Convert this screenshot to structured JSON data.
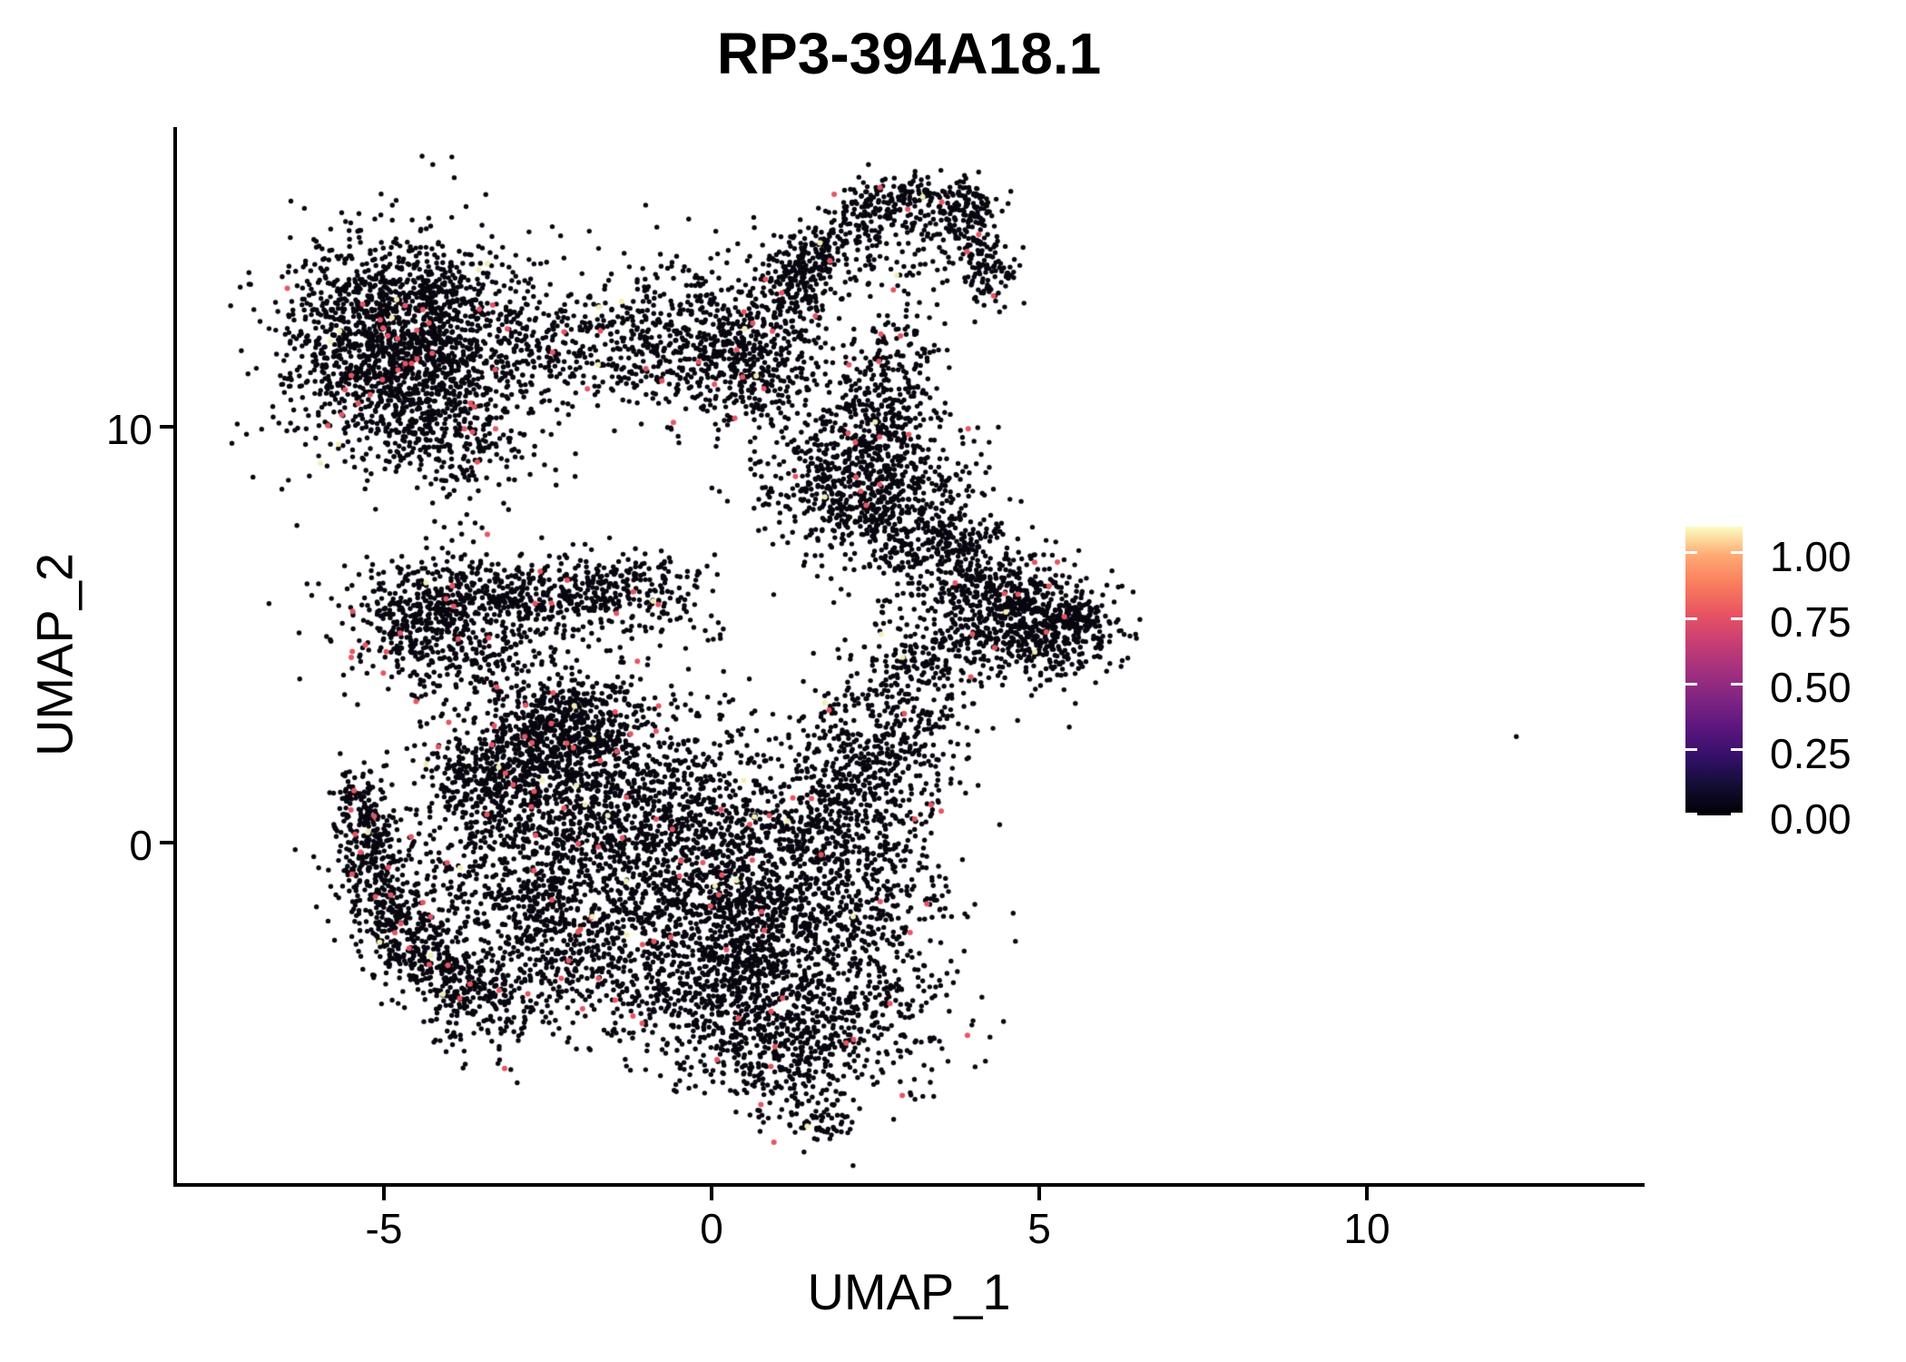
{
  "title": "RP3-394A18.1",
  "chart_data": {
    "type": "scatter",
    "subtype": "umap-feature-plot",
    "title": "RP3-394A18.1",
    "xlabel": "UMAP_1",
    "ylabel": "UMAP_2",
    "x_ticks": [
      -5,
      0,
      5,
      10
    ],
    "y_ticks": [
      10,
      0
    ],
    "x_tick_labels": [
      "-5",
      "0",
      "5",
      "10"
    ],
    "y_tick_labels": [
      "10",
      "0"
    ],
    "x_range": [
      -8.19,
      14.21
    ],
    "y_range": [
      -8.19,
      17.21
    ],
    "grid": false,
    "legend_position": "right",
    "colorbar": {
      "tick_labels": [
        "1.00",
        "0.75",
        "0.50",
        "0.25",
        "0.00"
      ],
      "tick_values": [
        1.0,
        0.75,
        0.5,
        0.25,
        0.0
      ],
      "scale_max": 1.1,
      "palette_name": "magma",
      "palette_stops_bottom_to_top": [
        "#000004",
        "#120d31",
        "#331068",
        "#5a167e",
        "#7e2482",
        "#a3307e",
        "#c83e73",
        "#e95462",
        "#f97c5d",
        "#fea973",
        "#fcfdbf"
      ]
    },
    "point_style": {
      "radius_px": 2.7,
      "accent_radius_px": 3.0,
      "base_color": "#08060f",
      "mid_expression_color": "#E95462",
      "high_expression_color": "#F3EFB2",
      "mid_fraction": 0.016,
      "high_fraction": 0.003
    },
    "seed": 7,
    "clusters": [
      {
        "id": "topleft-core1",
        "type": "blob",
        "cx": -4.9,
        "cy": 13.06,
        "sx": 0.66,
        "sy": 0.79,
        "n": 430
      },
      {
        "id": "topleft-core2",
        "type": "blob",
        "cx": -4.04,
        "cy": 12.36,
        "sx": 0.64,
        "sy": 0.87,
        "n": 430
      },
      {
        "id": "topleft-core3",
        "type": "blob",
        "cx": -5.29,
        "cy": 11.48,
        "sx": 0.64,
        "sy": 0.87,
        "n": 390
      },
      {
        "id": "topleft-core4",
        "type": "blob",
        "cx": -4.38,
        "cy": 10.83,
        "sx": 0.69,
        "sy": 0.79,
        "n": 330
      },
      {
        "id": "topleft-halo",
        "type": "blob",
        "cx": -4.6,
        "cy": 11.86,
        "sx": 1.22,
        "sy": 1.66,
        "n": 480
      },
      {
        "id": "topleft-tail",
        "type": "blob",
        "cx": -3.86,
        "cy": 9.52,
        "sx": 0.53,
        "sy": 0.61,
        "n": 140
      },
      {
        "id": "bridge-1",
        "type": "blob",
        "cx": -2.69,
        "cy": 12.07,
        "sx": 0.44,
        "sy": 0.61,
        "n": 90
      },
      {
        "id": "bridge-2",
        "type": "blob",
        "cx": -1.83,
        "cy": 11.92,
        "sx": 0.62,
        "sy": 0.72,
        "n": 130
      },
      {
        "id": "midchain-core",
        "type": "blob",
        "cx": -0.12,
        "cy": 12.14,
        "sx": 0.78,
        "sy": 0.92,
        "n": 580
      },
      {
        "id": "midchain-ext",
        "type": "blob",
        "cx": 0.68,
        "cy": 11.27,
        "sx": 0.5,
        "sy": 0.66,
        "n": 200
      },
      {
        "id": "midchain-up",
        "type": "blob",
        "cx": 1.22,
        "cy": 12.4,
        "sx": 0.35,
        "sy": 0.66,
        "n": 70
      },
      {
        "id": "hat-left-lobe",
        "type": "blob",
        "cx": 1.36,
        "cy": 13.71,
        "sx": 0.36,
        "sy": 0.48,
        "n": 110
      },
      {
        "id": "hat-inner",
        "type": "blob",
        "cx": 2.78,
        "cy": 14.32,
        "sx": 0.76,
        "sy": 0.72,
        "n": 130
      },
      {
        "id": "hat-rise",
        "type": "line",
        "x1": 1.19,
        "y1": 13.54,
        "x2": 2.41,
        "y2": 15.41,
        "sx": 0.24,
        "sy": 0.37,
        "n": 210
      },
      {
        "id": "hat-top",
        "type": "line",
        "x1": 2.41,
        "y1": 15.46,
        "x2": 4.13,
        "y2": 15.33,
        "sx": 0.21,
        "sy": 0.33,
        "n": 240
      },
      {
        "id": "hat-hook",
        "type": "line",
        "x1": 3.91,
        "y1": 15.07,
        "x2": 4.32,
        "y2": 13.17,
        "sx": 0.21,
        "sy": 0.33,
        "n": 150
      },
      {
        "id": "hat-stream",
        "type": "line",
        "x1": 3.02,
        "y1": 12.58,
        "x2": 2.6,
        "y2": 9.83,
        "sx": 0.33,
        "sy": 0.52,
        "n": 150
      },
      {
        "id": "midblob-core",
        "type": "blob",
        "cx": 2.16,
        "cy": 8.8,
        "sx": 0.76,
        "sy": 0.92,
        "n": 520
      },
      {
        "id": "midblob-se",
        "type": "blob",
        "cx": 2.78,
        "cy": 8.03,
        "sx": 0.62,
        "sy": 0.87,
        "n": 300
      },
      {
        "id": "midblob-upper",
        "type": "blob",
        "cx": 2.51,
        "cy": 10.33,
        "sx": 0.48,
        "sy": 0.87,
        "n": 160
      },
      {
        "id": "midblob-drip",
        "type": "line",
        "x1": 2.55,
        "y1": 7.82,
        "x2": 2.92,
        "y2": 6.62,
        "sx": 0.17,
        "sy": 0.26,
        "n": 60
      },
      {
        "id": "midblob-streak",
        "type": "line",
        "x1": 3.16,
        "y1": 7.49,
        "x2": 4.17,
        "y2": 6.94,
        "sx": 0.14,
        "sy": 0.22,
        "n": 70
      },
      {
        "id": "east-lobe",
        "type": "blob",
        "cx": 4.52,
        "cy": 5.41,
        "sx": 0.66,
        "sy": 0.7,
        "n": 420
      },
      {
        "id": "east-lobe2",
        "type": "blob",
        "cx": 5.21,
        "cy": 5.09,
        "sx": 0.48,
        "sy": 0.57,
        "n": 260
      },
      {
        "id": "east-tip",
        "type": "blob",
        "cx": 5.62,
        "cy": 5.31,
        "sx": 0.19,
        "sy": 0.26,
        "n": 70
      },
      {
        "id": "east-north",
        "type": "blob",
        "cx": 4.24,
        "cy": 6.18,
        "sx": 0.55,
        "sy": 0.39,
        "n": 160
      },
      {
        "id": "east-above",
        "type": "blob",
        "cx": 4.03,
        "cy": 7.16,
        "sx": 0.42,
        "sy": 0.44,
        "n": 60
      },
      {
        "id": "band-ridge",
        "type": "line",
        "x1": -5.04,
        "y1": 5.7,
        "x2": -0.58,
        "y2": 6.11,
        "sx": 0.28,
        "sy": 0.44,
        "n": 650
      },
      {
        "id": "band-lump",
        "type": "blob",
        "cx": -4.38,
        "cy": 4.98,
        "sx": 0.58,
        "sy": 0.57,
        "n": 200
      },
      {
        "id": "band-spread",
        "type": "blob",
        "cx": -2.76,
        "cy": 5.59,
        "sx": 1.59,
        "sy": 0.92,
        "n": 240
      },
      {
        "id": "band-below",
        "type": "blob",
        "cx": -3.66,
        "cy": 4.21,
        "sx": 0.83,
        "sy": 0.55,
        "n": 120
      },
      {
        "id": "diag-streak1",
        "type": "line",
        "x1": -4.24,
        "y1": 1.44,
        "x2": -1.83,
        "y2": 3.49,
        "sx": 0.22,
        "sy": 0.35,
        "n": 280
      },
      {
        "id": "diag-streak2",
        "type": "line",
        "x1": -3.82,
        "y1": 0.87,
        "x2": -1.61,
        "y2": 2.79,
        "sx": 0.19,
        "sy": 0.31,
        "n": 220
      },
      {
        "id": "crescent-1",
        "type": "line",
        "x1": -5.43,
        "y1": 1.44,
        "x2": -5.29,
        "y2": -0.52,
        "sx": 0.22,
        "sy": 0.35,
        "n": 180
      },
      {
        "id": "crescent-2",
        "type": "line",
        "x1": -5.29,
        "y1": -0.52,
        "x2": -4.6,
        "y2": -2.62,
        "sx": 0.24,
        "sy": 0.37,
        "n": 200
      },
      {
        "id": "crescent-3",
        "type": "line",
        "x1": -4.6,
        "y1": -2.62,
        "x2": -3.35,
        "y2": -3.93,
        "sx": 0.25,
        "sy": 0.39,
        "n": 200
      },
      {
        "id": "crescent-halo",
        "type": "blob",
        "cx": -5.04,
        "cy": -0.7,
        "sx": 0.42,
        "sy": 1.31,
        "n": 140
      },
      {
        "id": "mass-1",
        "type": "blob",
        "cx": -1.79,
        "cy": 1.05,
        "sx": 1.04,
        "sy": 1.2,
        "n": 800
      },
      {
        "id": "mass-2",
        "type": "blob",
        "cx": -0.06,
        "cy": 0.07,
        "sx": 1.04,
        "sy": 1.31,
        "n": 800
      },
      {
        "id": "mass-3",
        "type": "blob",
        "cx": -1.16,
        "cy": -2.01,
        "sx": 1.18,
        "sy": 1.2,
        "n": 700
      },
      {
        "id": "mass-4",
        "type": "blob",
        "cx": 0.91,
        "cy": -2.45,
        "sx": 0.76,
        "sy": 1.05,
        "n": 450
      },
      {
        "id": "mass-5",
        "type": "blob",
        "cx": 1.68,
        "cy": -0.48,
        "sx": 0.76,
        "sy": 1.2,
        "n": 400
      },
      {
        "id": "mass-6",
        "type": "blob",
        "cx": 2.16,
        "cy": 1.48,
        "sx": 0.62,
        "sy": 0.98,
        "n": 300
      },
      {
        "id": "mass-topedge",
        "type": "blob",
        "cx": -2.27,
        "cy": 3.01,
        "sx": 0.76,
        "sy": 0.66,
        "n": 250
      },
      {
        "id": "mass-left",
        "type": "blob",
        "cx": -2.89,
        "cy": -0.26,
        "sx": 0.76,
        "sy": 1.31,
        "n": 400
      },
      {
        "id": "mass-leftlow",
        "type": "blob",
        "cx": -2.55,
        "cy": -2.88,
        "sx": 0.69,
        "sy": 0.98,
        "n": 200
      },
      {
        "id": "mass-wedge",
        "type": "blob",
        "cx": -0.06,
        "cy": -3.76,
        "sx": 0.9,
        "sy": 0.92,
        "n": 450
      },
      {
        "id": "mass-wedge2",
        "type": "blob",
        "cx": 1.05,
        "cy": -5.28,
        "sx": 0.58,
        "sy": 0.7,
        "n": 260
      },
      {
        "id": "mass-tip",
        "type": "blob",
        "cx": 1.68,
        "cy": -6.7,
        "sx": 0.25,
        "sy": 0.24,
        "n": 50
      },
      {
        "id": "mass-ne",
        "type": "blob",
        "cx": 2.85,
        "cy": 2.79,
        "sx": 0.62,
        "sy": 0.98,
        "n": 260
      },
      {
        "id": "mass-neck",
        "type": "blob",
        "cx": 3.27,
        "cy": 4.32,
        "sx": 0.48,
        "sy": 0.76,
        "n": 160
      },
      {
        "id": "mass-right",
        "type": "blob",
        "cx": 2.65,
        "cy": -1.57,
        "sx": 0.62,
        "sy": 0.98,
        "n": 160
      },
      {
        "id": "mass-se",
        "type": "blob",
        "cx": 2.3,
        "cy": -4.19,
        "sx": 0.7,
        "sy": 0.9,
        "n": 300
      },
      {
        "id": "mass-swtail",
        "type": "blob",
        "cx": -3.66,
        "cy": -3.76,
        "sx": 0.55,
        "sy": 0.76,
        "n": 120
      },
      {
        "id": "mass-wfill",
        "type": "blob",
        "cx": -4.35,
        "cy": -1.79,
        "sx": 0.48,
        "sy": 0.76,
        "n": 140
      }
    ],
    "outliers": [
      {
        "x": 12.28,
        "y": 2.55
      }
    ]
  }
}
